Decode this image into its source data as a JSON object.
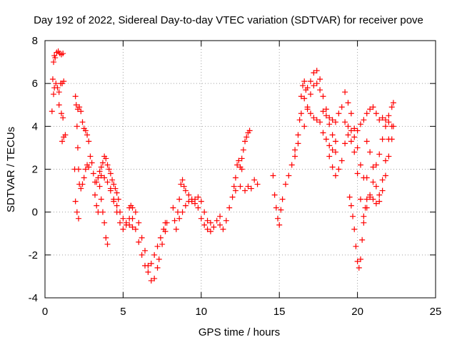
{
  "chart_data": {
    "type": "scatter",
    "title": "Day 192 of 2022, Sidereal Day-to-day VTEC variation (SDTVAR) for receiver pove",
    "xlabel": "GPS time / hours",
    "ylabel": "SDTVAR / TECUs",
    "xlim": [
      0,
      25
    ],
    "ylim": [
      -4,
      8
    ],
    "xticks": [
      {
        "value": 0,
        "label": "0"
      },
      {
        "value": 5,
        "label": "5"
      },
      {
        "value": 10,
        "label": "10"
      },
      {
        "value": 15,
        "label": "15"
      },
      {
        "value": 20,
        "label": "20"
      },
      {
        "value": 25,
        "label": "25"
      }
    ],
    "yticks": [
      {
        "value": -4,
        "label": "-4"
      },
      {
        "value": -2,
        "label": "-2"
      },
      {
        "value": 0,
        "label": "0"
      },
      {
        "value": 2,
        "label": "2"
      },
      {
        "value": 4,
        "label": "4"
      },
      {
        "value": 6,
        "label": "6"
      },
      {
        "value": 8,
        "label": "8"
      }
    ],
    "grid": true,
    "marker": "+",
    "color": "#ff0000",
    "series": [
      {
        "values": [
          [
            0.45,
            4.7
          ],
          [
            0.5,
            6.2
          ],
          [
            0.55,
            7.0
          ],
          [
            0.6,
            7.3
          ],
          [
            0.65,
            7.2
          ],
          [
            0.75,
            7.45
          ],
          [
            0.85,
            7.5
          ],
          [
            0.95,
            7.4
          ],
          [
            1.05,
            7.35
          ],
          [
            1.15,
            7.4
          ],
          [
            0.55,
            5.5
          ],
          [
            0.6,
            5.8
          ],
          [
            0.7,
            6.0
          ],
          [
            0.8,
            5.8
          ],
          [
            0.9,
            5.6
          ],
          [
            1.0,
            6.0
          ],
          [
            1.1,
            6.0
          ],
          [
            1.2,
            6.1
          ],
          [
            0.9,
            5.0
          ],
          [
            1.05,
            4.6
          ],
          [
            1.15,
            4.4
          ],
          [
            1.1,
            3.3
          ],
          [
            1.2,
            3.5
          ],
          [
            1.3,
            3.6
          ],
          [
            1.9,
            2.0
          ],
          [
            1.95,
            0.5
          ],
          [
            2.05,
            0.0
          ],
          [
            2.15,
            -0.3
          ],
          [
            1.95,
            5.4
          ],
          [
            2.0,
            5.0
          ],
          [
            2.05,
            4.0
          ],
          [
            2.1,
            3.0
          ],
          [
            2.15,
            2.0
          ],
          [
            2.2,
            1.3
          ],
          [
            2.3,
            1.1
          ],
          [
            2.4,
            1.3
          ],
          [
            2.5,
            1.6
          ],
          [
            2.6,
            2.0
          ],
          [
            2.7,
            2.2
          ],
          [
            2.8,
            2.1
          ],
          [
            2.1,
            4.8
          ],
          [
            2.2,
            4.9
          ],
          [
            2.3,
            4.7
          ],
          [
            2.4,
            4.2
          ],
          [
            2.5,
            3.9
          ],
          [
            2.6,
            3.8
          ],
          [
            2.7,
            3.6
          ],
          [
            2.8,
            3.3
          ],
          [
            2.9,
            2.6
          ],
          [
            3.0,
            2.3
          ],
          [
            3.1,
            1.8
          ],
          [
            3.2,
            1.4
          ],
          [
            3.2,
            0.8
          ],
          [
            3.3,
            0.3
          ],
          [
            3.4,
            0.0
          ],
          [
            3.3,
            1.4
          ],
          [
            3.4,
            1.6
          ],
          [
            3.5,
            1.9
          ],
          [
            3.6,
            2.1
          ],
          [
            3.7,
            2.3
          ],
          [
            3.8,
            2.6
          ],
          [
            3.9,
            2.5
          ],
          [
            4.0,
            2.2
          ],
          [
            4.1,
            2.0
          ],
          [
            4.2,
            1.8
          ],
          [
            4.3,
            1.5
          ],
          [
            4.4,
            1.3
          ],
          [
            4.5,
            1.1
          ],
          [
            4.6,
            0.9
          ],
          [
            4.7,
            0.6
          ],
          [
            3.5,
            1.2
          ],
          [
            3.6,
            0.6
          ],
          [
            3.7,
            0.0
          ],
          [
            3.8,
            -0.5
          ],
          [
            3.9,
            -1.2
          ],
          [
            4.0,
            -1.5
          ],
          [
            3.6,
            1.7
          ],
          [
            3.8,
            1.6
          ],
          [
            4.0,
            1.4
          ],
          [
            4.2,
            1.1
          ],
          [
            4.4,
            0.6
          ],
          [
            4.6,
            0.3
          ],
          [
            4.8,
            0.0
          ],
          [
            5.0,
            -0.3
          ],
          [
            5.2,
            -0.5
          ],
          [
            5.4,
            -0.6
          ],
          [
            5.6,
            -0.7
          ],
          [
            4.2,
            1.0
          ],
          [
            4.4,
            0.5
          ],
          [
            4.6,
            0.0
          ],
          [
            4.8,
            -0.5
          ],
          [
            5.0,
            -0.8
          ],
          [
            5.2,
            -0.6
          ],
          [
            5.4,
            -0.3
          ],
          [
            5.4,
            0.2
          ],
          [
            5.5,
            0.3
          ],
          [
            5.6,
            0.2
          ],
          [
            5.8,
            0.0
          ],
          [
            6.0,
            -0.5
          ],
          [
            6.2,
            -1.2
          ],
          [
            6.4,
            -1.8
          ],
          [
            6.6,
            -2.5
          ],
          [
            6.8,
            -3.2
          ],
          [
            7.0,
            -3.1
          ],
          [
            7.2,
            -2.6
          ],
          [
            5.6,
            -0.3
          ],
          [
            5.8,
            -0.8
          ],
          [
            6.0,
            -1.4
          ],
          [
            6.2,
            -2.0
          ],
          [
            6.4,
            -2.5
          ],
          [
            6.6,
            -2.8
          ],
          [
            6.8,
            -2.4
          ],
          [
            7.0,
            -2.0
          ],
          [
            7.2,
            -1.6
          ],
          [
            7.4,
            -1.2
          ],
          [
            7.6,
            -0.8
          ],
          [
            7.7,
            -0.5
          ],
          [
            7.3,
            -2.2
          ],
          [
            7.5,
            -1.5
          ],
          [
            7.7,
            -0.9
          ],
          [
            7.8,
            -0.5
          ],
          [
            8.2,
            0.2
          ],
          [
            8.3,
            -0.4
          ],
          [
            8.4,
            -0.8
          ],
          [
            8.5,
            0.0
          ],
          [
            8.6,
            0.6
          ],
          [
            8.7,
            1.3
          ],
          [
            8.8,
            1.5
          ],
          [
            8.9,
            1.2
          ],
          [
            9.0,
            1.0
          ],
          [
            9.2,
            0.8
          ],
          [
            9.4,
            0.6
          ],
          [
            9.6,
            0.4
          ],
          [
            9.8,
            0.2
          ],
          [
            10.0,
            -0.3
          ],
          [
            10.2,
            -0.6
          ],
          [
            10.4,
            -0.8
          ],
          [
            10.6,
            -0.5
          ],
          [
            8.6,
            -0.3
          ],
          [
            8.8,
            0.0
          ],
          [
            9.0,
            0.3
          ],
          [
            9.2,
            0.5
          ],
          [
            9.4,
            0.5
          ],
          [
            9.6,
            0.6
          ],
          [
            9.8,
            0.7
          ],
          [
            10.0,
            0.5
          ],
          [
            10.2,
            0.0
          ],
          [
            10.4,
            -0.4
          ],
          [
            10.6,
            -0.9
          ],
          [
            10.8,
            -0.7
          ],
          [
            11.0,
            -0.4
          ],
          [
            11.2,
            -0.2
          ],
          [
            11.2,
            -0.6
          ],
          [
            11.4,
            -0.8
          ],
          [
            11.6,
            -0.4
          ],
          [
            11.8,
            0.2
          ],
          [
            12.0,
            0.7
          ],
          [
            12.1,
            1.2
          ],
          [
            12.2,
            1.6
          ],
          [
            12.3,
            2.2
          ],
          [
            12.4,
            2.4
          ],
          [
            12.5,
            2.1
          ],
          [
            12.6,
            2.0
          ],
          [
            12.6,
            2.5
          ],
          [
            12.7,
            2.9
          ],
          [
            12.8,
            3.3
          ],
          [
            12.9,
            3.5
          ],
          [
            13.0,
            3.7
          ],
          [
            13.1,
            3.8
          ],
          [
            12.2,
            1.0
          ],
          [
            12.5,
            1.2
          ],
          [
            12.8,
            1.0
          ],
          [
            13.0,
            1.2
          ],
          [
            13.2,
            1.1
          ],
          [
            13.4,
            1.5
          ],
          [
            13.6,
            1.3
          ],
          [
            14.6,
            1.7
          ],
          [
            14.7,
            0.8
          ],
          [
            14.8,
            0.2
          ],
          [
            14.9,
            -0.3
          ],
          [
            15.0,
            -0.6
          ],
          [
            15.1,
            0.1
          ],
          [
            15.2,
            0.6
          ],
          [
            15.4,
            1.3
          ],
          [
            15.6,
            1.7
          ],
          [
            15.8,
            2.2
          ],
          [
            16.0,
            2.6
          ],
          [
            16.2,
            3.2
          ],
          [
            16.3,
            4.3
          ],
          [
            16.4,
            5.4
          ],
          [
            16.5,
            5.9
          ],
          [
            16.6,
            6.1
          ],
          [
            16.7,
            5.7
          ],
          [
            16.8,
            4.9
          ],
          [
            17.0,
            4.6
          ],
          [
            17.2,
            4.4
          ],
          [
            17.4,
            4.3
          ],
          [
            17.6,
            4.2
          ],
          [
            17.8,
            3.7
          ],
          [
            18.0,
            3.4
          ],
          [
            18.2,
            3.1
          ],
          [
            18.4,
            2.9
          ],
          [
            18.6,
            2.8
          ],
          [
            16.0,
            2.9
          ],
          [
            16.2,
            3.6
          ],
          [
            16.4,
            4.6
          ],
          [
            16.6,
            5.3
          ],
          [
            16.8,
            5.8
          ],
          [
            17.0,
            6.1
          ],
          [
            17.2,
            6.5
          ],
          [
            17.4,
            6.6
          ],
          [
            17.6,
            6.2
          ],
          [
            17.8,
            5.4
          ],
          [
            18.0,
            4.8
          ],
          [
            18.2,
            4.1
          ],
          [
            18.4,
            3.6
          ],
          [
            18.6,
            3.3
          ],
          [
            16.6,
            4.0
          ],
          [
            16.8,
            4.8
          ],
          [
            17.0,
            5.5
          ],
          [
            17.2,
            5.9
          ],
          [
            17.4,
            6.0
          ],
          [
            17.6,
            5.7
          ],
          [
            17.8,
            4.7
          ],
          [
            18.0,
            4.5
          ],
          [
            18.2,
            4.4
          ],
          [
            18.4,
            4.3
          ],
          [
            18.6,
            4.2
          ],
          [
            18.8,
            4.6
          ],
          [
            19.0,
            4.9
          ],
          [
            19.2,
            5.6
          ],
          [
            19.4,
            5.1
          ],
          [
            19.6,
            4.6
          ],
          [
            19.8,
            3.9
          ],
          [
            20.0,
            3.0
          ],
          [
            20.2,
            2.2
          ],
          [
            20.4,
            1.6
          ],
          [
            20.6,
            1.6
          ],
          [
            18.2,
            2.6
          ],
          [
            18.4,
            2.1
          ],
          [
            18.6,
            1.7
          ],
          [
            18.8,
            2.0
          ],
          [
            19.0,
            2.4
          ],
          [
            19.2,
            3.2
          ],
          [
            19.4,
            3.6
          ],
          [
            19.6,
            3.3
          ],
          [
            19.8,
            2.8
          ],
          [
            20.0,
            1.8
          ],
          [
            20.2,
            0.6
          ],
          [
            20.4,
            -0.2
          ],
          [
            20.6,
            0.2
          ],
          [
            20.8,
            0.7
          ],
          [
            21.0,
            1.4
          ],
          [
            21.2,
            2.2
          ],
          [
            21.4,
            2.7
          ],
          [
            21.6,
            3.4
          ],
          [
            21.8,
            4.0
          ],
          [
            22.0,
            4.5
          ],
          [
            22.2,
            4.9
          ],
          [
            22.3,
            5.1
          ],
          [
            19.2,
            4.2
          ],
          [
            19.4,
            4.0
          ],
          [
            19.6,
            3.8
          ],
          [
            19.8,
            3.5
          ],
          [
            20.0,
            3.8
          ],
          [
            20.2,
            4.1
          ],
          [
            20.4,
            4.3
          ],
          [
            20.6,
            4.6
          ],
          [
            20.8,
            4.8
          ],
          [
            21.0,
            4.9
          ],
          [
            21.2,
            4.6
          ],
          [
            21.4,
            4.3
          ],
          [
            21.6,
            4.4
          ],
          [
            21.8,
            4.3
          ],
          [
            22.0,
            4.2
          ],
          [
            22.2,
            4.0
          ],
          [
            19.5,
            0.7
          ],
          [
            19.6,
            0.3
          ],
          [
            19.7,
            -0.2
          ],
          [
            19.8,
            -0.8
          ],
          [
            19.9,
            -1.6
          ],
          [
            20.0,
            -2.3
          ],
          [
            20.1,
            -2.6
          ],
          [
            20.2,
            -2.2
          ],
          [
            20.3,
            -1.3
          ],
          [
            20.4,
            -0.5
          ],
          [
            20.5,
            0.2
          ],
          [
            20.6,
            0.6
          ],
          [
            20.8,
            0.8
          ],
          [
            21.0,
            0.6
          ],
          [
            21.2,
            0.4
          ],
          [
            21.4,
            0.5
          ],
          [
            21.6,
            1.0
          ],
          [
            21.8,
            1.7
          ],
          [
            22.0,
            2.6
          ],
          [
            22.2,
            3.4
          ],
          [
            22.3,
            4.0
          ],
          [
            20.6,
            3.3
          ],
          [
            20.8,
            2.8
          ],
          [
            21.0,
            2.1
          ],
          [
            21.2,
            1.2
          ],
          [
            21.4,
            0.8
          ],
          [
            21.6,
            1.5
          ],
          [
            21.8,
            2.4
          ],
          [
            22.0,
            3.4
          ]
        ]
      }
    ]
  }
}
